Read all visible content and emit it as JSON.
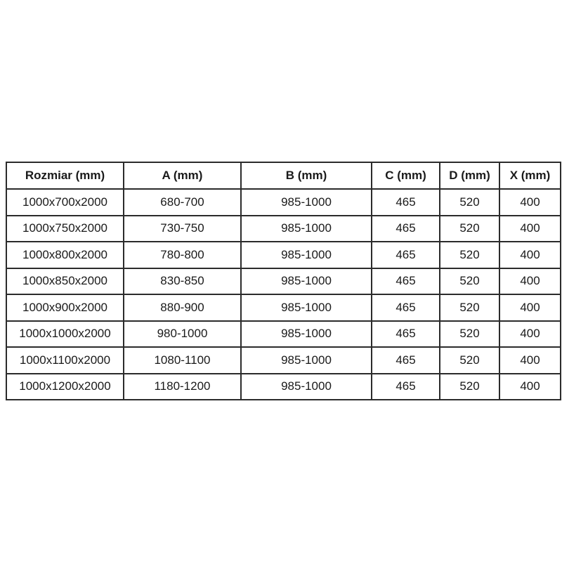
{
  "page": {
    "background_color": "#ffffff"
  },
  "table": {
    "name": "shower-enclosure-size-table",
    "border_color": "#2b2b2b",
    "text_color": "#1a1a1a",
    "header_bg": "#ffffff",
    "columns": [
      "Rozmiar (mm)",
      "A (mm)",
      "B (mm)",
      "C (mm)",
      "D (mm)",
      "X (mm)"
    ],
    "rows": [
      [
        "1000x700x2000",
        "680-700",
        "985-1000",
        "465",
        "520",
        "400"
      ],
      [
        "1000x750x2000",
        "730-750",
        "985-1000",
        "465",
        "520",
        "400"
      ],
      [
        "1000x800x2000",
        "780-800",
        "985-1000",
        "465",
        "520",
        "400"
      ],
      [
        "1000x850x2000",
        "830-850",
        "985-1000",
        "465",
        "520",
        "400"
      ],
      [
        "1000x900x2000",
        "880-900",
        "985-1000",
        "465",
        "520",
        "400"
      ],
      [
        "1000x1000x2000",
        "980-1000",
        "985-1000",
        "465",
        "520",
        "400"
      ],
      [
        "1000x1100x2000",
        "1080-1100",
        "985-1000",
        "465",
        "520",
        "400"
      ],
      [
        "1000x1200x2000",
        "1180-1200",
        "985-1000",
        "465",
        "520",
        "400"
      ]
    ]
  }
}
